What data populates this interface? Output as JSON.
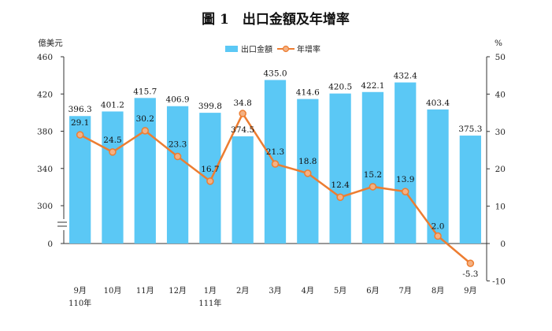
{
  "chart_data": {
    "type": "bar",
    "title": "圖 1　出口金額及年增率",
    "categories": [
      "9月",
      "10月",
      "11月",
      "12月",
      "1月",
      "2月",
      "3月",
      "4月",
      "5月",
      "6月",
      "7月",
      "8月",
      "9月"
    ],
    "category_sublabels": [
      "110年",
      "",
      "",
      "",
      "111年",
      "",
      "",
      "",
      "",
      "",
      "",
      "",
      ""
    ],
    "series": [
      {
        "name": "出口金額",
        "type": "bar",
        "axis": "left",
        "values": [
          396.3,
          401.2,
          415.7,
          406.9,
          399.8,
          374.5,
          435.0,
          414.6,
          420.5,
          422.1,
          432.4,
          403.4,
          375.3
        ],
        "labels": [
          "396.3",
          "401.2",
          "415.7",
          "406.9",
          "399.8",
          "374.5",
          "435.0",
          "414.6",
          "420.5",
          "422.1",
          "432.4",
          "403.4",
          "375.3"
        ],
        "color": "#5bc8f5"
      },
      {
        "name": "年增率",
        "type": "line",
        "axis": "right",
        "values": [
          29.1,
          24.5,
          30.2,
          23.3,
          16.7,
          34.8,
          21.3,
          18.8,
          12.4,
          15.2,
          13.9,
          2.0,
          -5.3
        ],
        "labels": [
          "29.1",
          "24.5",
          "30.2",
          "23.3",
          "16.7",
          "34.8",
          "21.3",
          "18.8",
          "12.4",
          "15.2",
          "13.9",
          "2.0",
          "-5.3"
        ],
        "color": "#ed7d31",
        "marker_fill": "#f4b183"
      }
    ],
    "left_axis": {
      "unit": "億美元",
      "ticks": [
        "0",
        "300",
        "340",
        "380",
        "420",
        "460"
      ],
      "ticks_values": [
        300,
        340,
        380,
        420,
        460
      ],
      "ylim": [
        300,
        460
      ],
      "broken": true
    },
    "right_axis": {
      "unit": "%",
      "ticks": [
        "-10",
        "0",
        "10",
        "20",
        "30",
        "40",
        "50"
      ],
      "ylim": [
        -10,
        50
      ]
    },
    "legend": {
      "placement": "top-center"
    },
    "grid": false
  }
}
